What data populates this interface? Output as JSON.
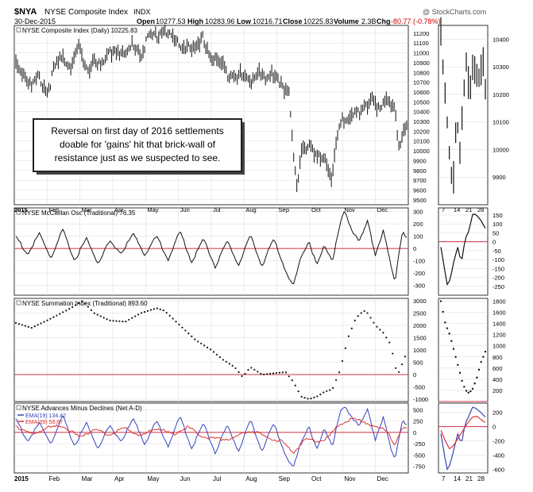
{
  "header": {
    "symbol": "$NYA",
    "name": "NYSE Composite Index",
    "exchange": "INDX",
    "source": "@ StockCharts.com",
    "date": "30-Dec-2015",
    "open_label": "Open",
    "open": "10277.53",
    "high_label": "High",
    "high": "10283.96",
    "low_label": "Low",
    "low": "10216.71",
    "close_label": "Close",
    "close": "10225.83",
    "volume_label": "Volume",
    "volume": "2.3B",
    "chg_label": "Chg",
    "chg": "-80.77 (-0.78%)"
  },
  "annotation": {
    "lines": [
      "Reversal on first day of 2016 settlements",
      "doable for 'gains' hit that brick-wall of",
      "resistance just as we suspected to see."
    ]
  },
  "colors": {
    "zero_line": "#cc3344",
    "ema19": "#3344bb",
    "ema39": "#dd3333",
    "grid": "#d8d8d8",
    "series": "#111111"
  },
  "x_axis": {
    "left": [
      "2015",
      "Feb",
      "Mar",
      "Apr",
      "May",
      "Jun",
      "Jul",
      "Aug",
      "Sep",
      "Oct",
      "Nov",
      "Dec"
    ],
    "right": [
      "7",
      "14",
      "21",
      "28"
    ]
  },
  "chart_data": [
    {
      "type": "ohlc",
      "label": "NYSE Composite Index (Daily) 10225.83",
      "ylim": [
        9450,
        11280
      ],
      "ticks": [
        9500,
        9600,
        9700,
        9800,
        9900,
        10000,
        10100,
        10200,
        10300,
        10400,
        10500,
        10600,
        10700,
        10800,
        10900,
        11000,
        11100,
        11200
      ],
      "right_ylim": [
        9800,
        10450
      ],
      "right_ticks": [
        9900,
        10000,
        10100,
        10200,
        10300,
        10400
      ],
      "anchors": [
        [
          0,
          10900
        ],
        [
          0.02,
          10800
        ],
        [
          0.04,
          10650
        ],
        [
          0.06,
          10750
        ],
        [
          0.08,
          10600
        ],
        [
          0.1,
          10850
        ],
        [
          0.12,
          10950
        ],
        [
          0.14,
          10880
        ],
        [
          0.16,
          11050
        ],
        [
          0.18,
          10800
        ],
        [
          0.2,
          10950
        ],
        [
          0.22,
          10850
        ],
        [
          0.24,
          11000
        ],
        [
          0.26,
          11050
        ],
        [
          0.28,
          10950
        ],
        [
          0.3,
          11100
        ],
        [
          0.32,
          11000
        ],
        [
          0.34,
          11150
        ],
        [
          0.36,
          11180
        ],
        [
          0.38,
          11250
        ],
        [
          0.4,
          11150
        ],
        [
          0.42,
          11050
        ],
        [
          0.44,
          11100
        ],
        [
          0.46,
          11000
        ],
        [
          0.48,
          11150
        ],
        [
          0.5,
          10950
        ],
        [
          0.52,
          10900
        ],
        [
          0.54,
          10800
        ],
        [
          0.56,
          10800
        ],
        [
          0.58,
          10750
        ],
        [
          0.6,
          10700
        ],
        [
          0.62,
          10850
        ],
        [
          0.64,
          10700
        ],
        [
          0.66,
          10800
        ],
        [
          0.68,
          10700
        ],
        [
          0.7,
          10550
        ],
        [
          0.71,
          9900
        ],
        [
          0.72,
          9650
        ],
        [
          0.73,
          10050
        ],
        [
          0.75,
          10050
        ],
        [
          0.77,
          9900
        ],
        [
          0.79,
          9950
        ],
        [
          0.81,
          9700
        ],
        [
          0.82,
          10100
        ],
        [
          0.84,
          10350
        ],
        [
          0.86,
          10400
        ],
        [
          0.88,
          10350
        ],
        [
          0.9,
          10450
        ],
        [
          0.91,
          10600
        ],
        [
          0.93,
          10400
        ],
        [
          0.95,
          10500
        ],
        [
          0.97,
          10450
        ],
        [
          0.98,
          10050
        ],
        [
          1.0,
          10250
        ]
      ],
      "right_anchors": [
        [
          0,
          10420
        ],
        [
          0.05,
          10280
        ],
        [
          0.12,
          10150
        ],
        [
          0.2,
          9980
        ],
        [
          0.27,
          9850
        ],
        [
          0.35,
          10150
        ],
        [
          0.42,
          10000
        ],
        [
          0.5,
          10150
        ],
        [
          0.57,
          10300
        ],
        [
          0.65,
          10200
        ],
        [
          0.72,
          10300
        ],
        [
          0.8,
          10250
        ],
        [
          0.88,
          10300
        ],
        [
          0.95,
          10350
        ],
        [
          1.0,
          10230
        ]
      ]
    },
    {
      "type": "line",
      "label": "NYSE McClellan Osc (Traditional) 76.35",
      "ylim": [
        -380,
        330
      ],
      "ticks": [
        -300,
        -200,
        -100,
        0,
        100,
        200,
        300
      ],
      "right_ylim": [
        -300,
        190
      ],
      "right_ticks": [
        -250,
        -200,
        -150,
        -100,
        -50,
        0,
        50,
        100,
        150
      ],
      "anchors": [
        [
          0,
          100
        ],
        [
          0.03,
          -50
        ],
        [
          0.06,
          120
        ],
        [
          0.09,
          -80
        ],
        [
          0.12,
          150
        ],
        [
          0.15,
          -100
        ],
        [
          0.18,
          80
        ],
        [
          0.21,
          -120
        ],
        [
          0.24,
          60
        ],
        [
          0.27,
          -40
        ],
        [
          0.3,
          120
        ],
        [
          0.33,
          -50
        ],
        [
          0.36,
          100
        ],
        [
          0.39,
          -90
        ],
        [
          0.42,
          140
        ],
        [
          0.45,
          -110
        ],
        [
          0.48,
          80
        ],
        [
          0.51,
          -150
        ],
        [
          0.54,
          60
        ],
        [
          0.57,
          -130
        ],
        [
          0.6,
          100
        ],
        [
          0.63,
          -140
        ],
        [
          0.66,
          80
        ],
        [
          0.69,
          -180
        ],
        [
          0.71,
          -310
        ],
        [
          0.73,
          -60
        ],
        [
          0.75,
          60
        ],
        [
          0.77,
          -140
        ],
        [
          0.79,
          30
        ],
        [
          0.81,
          -100
        ],
        [
          0.83,
          200
        ],
        [
          0.84,
          300
        ],
        [
          0.86,
          150
        ],
        [
          0.88,
          60
        ],
        [
          0.9,
          220
        ],
        [
          0.92,
          -50
        ],
        [
          0.94,
          150
        ],
        [
          0.96,
          -150
        ],
        [
          0.97,
          -280
        ],
        [
          0.98,
          -30
        ],
        [
          0.99,
          150
        ],
        [
          1.0,
          76
        ]
      ],
      "right_anchors": [
        [
          0,
          -30
        ],
        [
          0.08,
          -150
        ],
        [
          0.15,
          -250
        ],
        [
          0.22,
          -200
        ],
        [
          0.3,
          -100
        ],
        [
          0.38,
          -30
        ],
        [
          0.46,
          -120
        ],
        [
          0.55,
          20
        ],
        [
          0.63,
          60
        ],
        [
          0.72,
          160
        ],
        [
          0.8,
          150
        ],
        [
          0.9,
          120
        ],
        [
          1.0,
          76
        ]
      ]
    },
    {
      "type": "dot",
      "label": "NYSE Summation Index (Traditional) 893.60",
      "ylim": [
        -1100,
        3100
      ],
      "ticks": [
        -1000,
        -500,
        0,
        500,
        1000,
        1500,
        2000,
        2500,
        3000
      ],
      "right_ylim": [
        0,
        1850
      ],
      "right_ticks": [
        200,
        400,
        600,
        800,
        1000,
        1200,
        1400,
        1600,
        1800
      ],
      "anchors": [
        [
          0,
          2100
        ],
        [
          0.04,
          1900
        ],
        [
          0.08,
          2200
        ],
        [
          0.14,
          2700
        ],
        [
          0.17,
          3000
        ],
        [
          0.2,
          2500
        ],
        [
          0.24,
          2200
        ],
        [
          0.28,
          2150
        ],
        [
          0.32,
          2500
        ],
        [
          0.36,
          2700
        ],
        [
          0.38,
          2600
        ],
        [
          0.42,
          2000
        ],
        [
          0.46,
          1400
        ],
        [
          0.5,
          1000
        ],
        [
          0.53,
          600
        ],
        [
          0.56,
          300
        ],
        [
          0.58,
          -100
        ],
        [
          0.6,
          300
        ],
        [
          0.63,
          0
        ],
        [
          0.66,
          50
        ],
        [
          0.69,
          100
        ],
        [
          0.71,
          -300
        ],
        [
          0.73,
          -900
        ],
        [
          0.75,
          -1000
        ],
        [
          0.77,
          -900
        ],
        [
          0.79,
          -700
        ],
        [
          0.81,
          -600
        ],
        [
          0.83,
          200
        ],
        [
          0.85,
          1500
        ],
        [
          0.87,
          2300
        ],
        [
          0.89,
          2600
        ],
        [
          0.9,
          2500
        ],
        [
          0.92,
          2000
        ],
        [
          0.94,
          1700
        ],
        [
          0.96,
          1200
        ],
        [
          0.97,
          300
        ],
        [
          0.98,
          100
        ],
        [
          1.0,
          894
        ]
      ],
      "right_anchors": [
        [
          0,
          1800
        ],
        [
          0.1,
          1400
        ],
        [
          0.2,
          1200
        ],
        [
          0.3,
          900
        ],
        [
          0.4,
          600
        ],
        [
          0.5,
          300
        ],
        [
          0.6,
          150
        ],
        [
          0.7,
          200
        ],
        [
          0.8,
          400
        ],
        [
          0.9,
          700
        ],
        [
          1.0,
          894
        ]
      ]
    },
    {
      "type": "line",
      "label": "NYSE Advances Minus Declines (Net A-D)",
      "ylim": [
        -900,
        650
      ],
      "ticks": [
        -750,
        -500,
        -250,
        0,
        250,
        500
      ],
      "right_ylim": [
        -650,
        330
      ],
      "right_ticks": [
        -600,
        -400,
        -200,
        0,
        200
      ],
      "series": [
        {
          "name": "EMA(19) 134.42",
          "color": "#3344bb",
          "anchors": [
            [
              0,
              300
            ],
            [
              0.03,
              -200
            ],
            [
              0.06,
              200
            ],
            [
              0.09,
              -250
            ],
            [
              0.12,
              350
            ],
            [
              0.15,
              -300
            ],
            [
              0.18,
              200
            ],
            [
              0.21,
              -350
            ],
            [
              0.24,
              150
            ],
            [
              0.27,
              -200
            ],
            [
              0.3,
              300
            ],
            [
              0.33,
              -250
            ],
            [
              0.36,
              250
            ],
            [
              0.39,
              -300
            ],
            [
              0.42,
              350
            ],
            [
              0.45,
              -350
            ],
            [
              0.48,
              200
            ],
            [
              0.51,
              -450
            ],
            [
              0.54,
              150
            ],
            [
              0.57,
              -400
            ],
            [
              0.6,
              250
            ],
            [
              0.63,
              -400
            ],
            [
              0.66,
              200
            ],
            [
              0.69,
              -500
            ],
            [
              0.71,
              -800
            ],
            [
              0.73,
              -200
            ],
            [
              0.75,
              150
            ],
            [
              0.77,
              -400
            ],
            [
              0.79,
              100
            ],
            [
              0.81,
              -300
            ],
            [
              0.83,
              450
            ],
            [
              0.84,
              550
            ],
            [
              0.86,
              350
            ],
            [
              0.88,
              150
            ],
            [
              0.9,
              500
            ],
            [
              0.92,
              -150
            ],
            [
              0.94,
              350
            ],
            [
              0.96,
              -400
            ],
            [
              0.97,
              -600
            ],
            [
              0.98,
              -100
            ],
            [
              0.99,
              300
            ],
            [
              1.0,
              134
            ]
          ],
          "right_anchors": [
            [
              0,
              -100
            ],
            [
              0.08,
              -400
            ],
            [
              0.15,
              -620
            ],
            [
              0.22,
              -500
            ],
            [
              0.3,
              -300
            ],
            [
              0.38,
              -100
            ],
            [
              0.46,
              -250
            ],
            [
              0.55,
              50
            ],
            [
              0.63,
              150
            ],
            [
              0.72,
              280
            ],
            [
              0.8,
              250
            ],
            [
              0.9,
              200
            ],
            [
              1.0,
              134
            ]
          ]
        },
        {
          "name": "EMA(39) 58.87",
          "color": "#dd3333",
          "anchors": [
            [
              0,
              150
            ],
            [
              0.04,
              -50
            ],
            [
              0.08,
              100
            ],
            [
              0.12,
              150
            ],
            [
              0.16,
              -100
            ],
            [
              0.2,
              50
            ],
            [
              0.24,
              -50
            ],
            [
              0.28,
              100
            ],
            [
              0.32,
              -80
            ],
            [
              0.36,
              100
            ],
            [
              0.4,
              -50
            ],
            [
              0.44,
              120
            ],
            [
              0.48,
              -100
            ],
            [
              0.52,
              -150
            ],
            [
              0.56,
              -120
            ],
            [
              0.6,
              50
            ],
            [
              0.64,
              -100
            ],
            [
              0.68,
              -200
            ],
            [
              0.71,
              -450
            ],
            [
              0.74,
              -150
            ],
            [
              0.77,
              -200
            ],
            [
              0.8,
              -100
            ],
            [
              0.83,
              200
            ],
            [
              0.86,
              300
            ],
            [
              0.89,
              250
            ],
            [
              0.92,
              100
            ],
            [
              0.95,
              50
            ],
            [
              0.97,
              -300
            ],
            [
              0.99,
              100
            ],
            [
              1.0,
              59
            ]
          ],
          "right_anchors": [
            [
              0,
              -50
            ],
            [
              0.1,
              -200
            ],
            [
              0.2,
              -320
            ],
            [
              0.3,
              -250
            ],
            [
              0.4,
              -150
            ],
            [
              0.5,
              -50
            ],
            [
              0.6,
              50
            ],
            [
              0.7,
              130
            ],
            [
              0.8,
              150
            ],
            [
              0.9,
              100
            ],
            [
              1.0,
              59
            ]
          ]
        }
      ]
    }
  ]
}
